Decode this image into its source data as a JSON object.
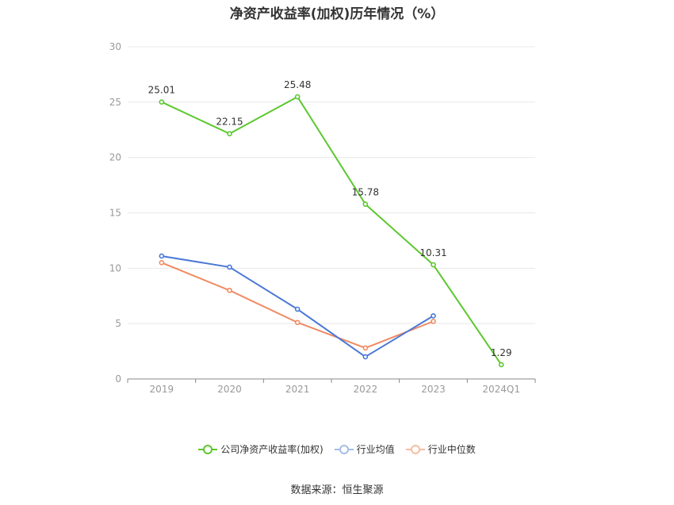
{
  "chart_data": {
    "type": "line",
    "title": "净资产收益率(加权)历年情况（%）",
    "categories": [
      "2019",
      "2020",
      "2021",
      "2022",
      "2023",
      "2024Q1"
    ],
    "ylim": [
      0,
      30
    ],
    "yticks": [
      0,
      5,
      10,
      15,
      20,
      25,
      30
    ],
    "grid": true,
    "legend_position": "bottom",
    "series": [
      {
        "name": "公司净资产收益率(加权)",
        "color": "#5cc72e",
        "values": [
          25.01,
          22.15,
          25.48,
          15.78,
          10.31,
          1.29
        ],
        "labels": [
          "25.01",
          "22.15",
          "25.48",
          "15.78",
          "10.31",
          "1.29"
        ]
      },
      {
        "name": "行业均值",
        "color": "#4a78d6",
        "values": [
          11.1,
          10.1,
          6.3,
          2.0,
          5.7,
          null
        ]
      },
      {
        "name": "行业中位数",
        "color": "#f08a62",
        "values": [
          10.5,
          8.0,
          5.1,
          2.8,
          5.2,
          null
        ]
      }
    ]
  },
  "footer": {
    "source": "数据来源：恒生聚源"
  }
}
